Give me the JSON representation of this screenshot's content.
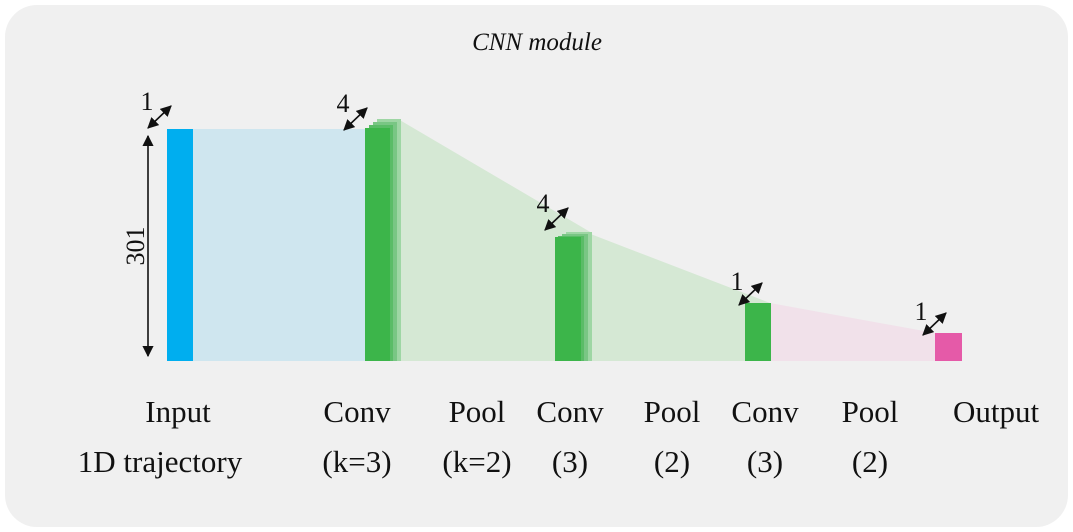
{
  "title": "CNN module",
  "dimension": "301",
  "depths": [
    "1",
    "4",
    "4",
    "1",
    "1"
  ],
  "columns": [
    {
      "label": "Input",
      "sub": "1D trajectory"
    },
    {
      "label": "Conv",
      "sub": "(k=3)"
    },
    {
      "label": "Pool",
      "sub": "(k=2)"
    },
    {
      "label": "Conv",
      "sub": "(3)"
    },
    {
      "label": "Pool",
      "sub": "(2)"
    },
    {
      "label": "Conv",
      "sub": "(3)"
    },
    {
      "label": "Pool",
      "sub": "(2)"
    },
    {
      "label": "Output"
    }
  ]
}
